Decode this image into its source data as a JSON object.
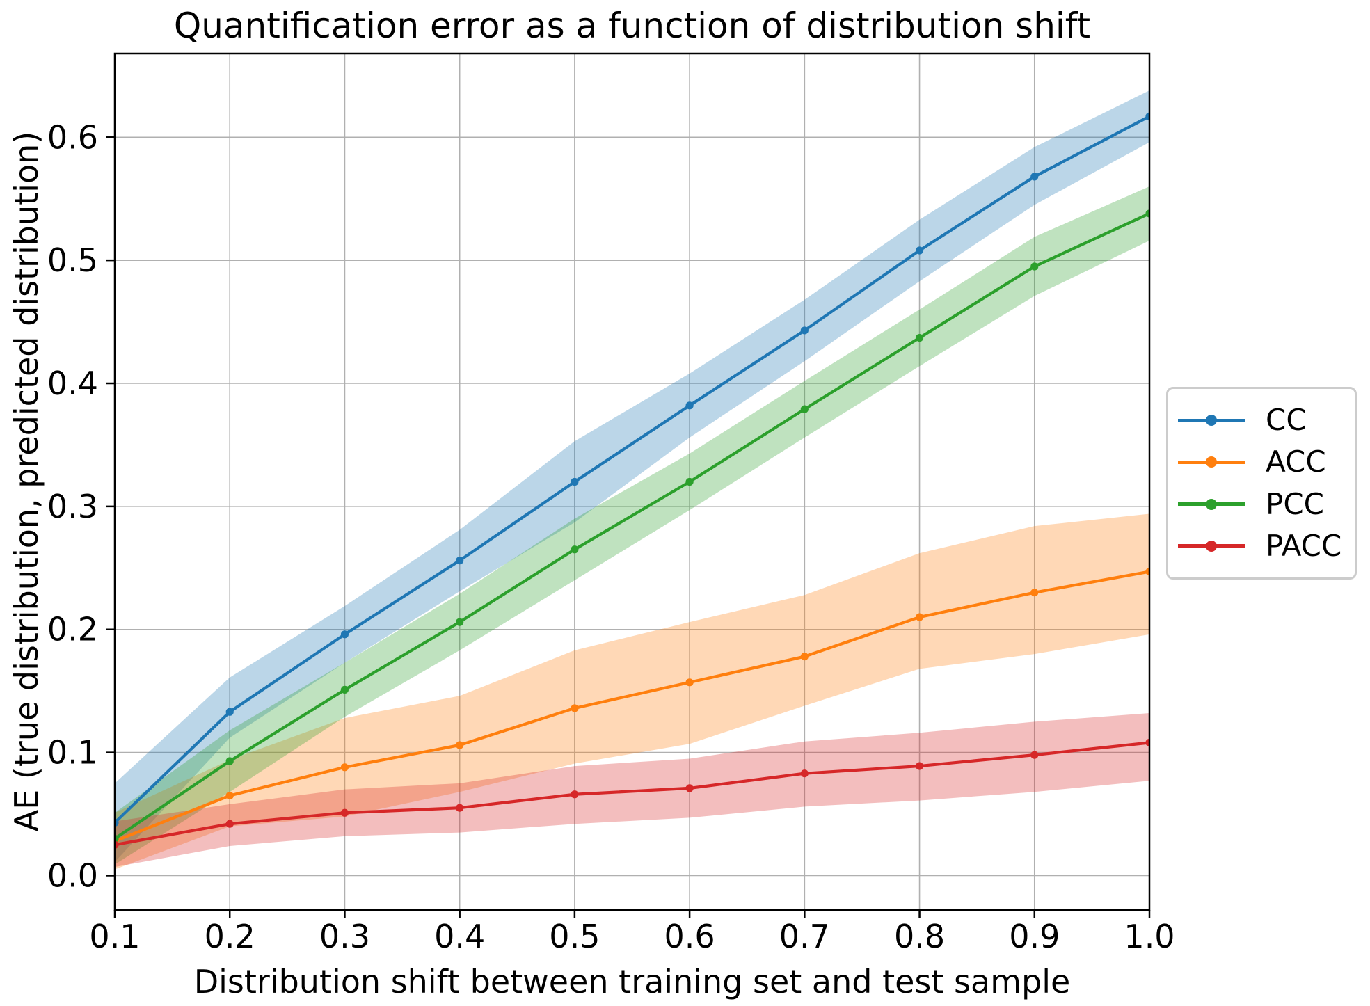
{
  "chart_data": {
    "type": "line",
    "title": "Quantification error as a function of distribution shift",
    "xlabel": "Distribution shift between training set and test sample",
    "ylabel": "AE (true distribution, predicted distribution)",
    "x": [
      0.1,
      0.2,
      0.3,
      0.4,
      0.5,
      0.6,
      0.7,
      0.8,
      0.9,
      1.0
    ],
    "xticks": [
      0.1,
      0.2,
      0.3,
      0.4,
      0.5,
      0.6,
      0.7,
      0.8,
      0.9,
      1.0
    ],
    "yticks": [
      0.0,
      0.1,
      0.2,
      0.3,
      0.4,
      0.5,
      0.6
    ],
    "xlim": [
      0.1,
      1.0
    ],
    "ylim": [
      -0.028,
      0.668
    ],
    "grid": true,
    "legend_position": "center-right-outside",
    "band_alpha": 0.3,
    "series": [
      {
        "name": "CC",
        "color": "#1f77b4",
        "values": [
          0.043,
          0.133,
          0.196,
          0.256,
          0.32,
          0.382,
          0.443,
          0.508,
          0.568,
          0.617
        ],
        "band_lower": [
          0.011,
          0.112,
          0.173,
          0.231,
          0.287,
          0.356,
          0.418,
          0.483,
          0.545,
          0.596
        ],
        "band_upper": [
          0.075,
          0.161,
          0.219,
          0.281,
          0.353,
          0.408,
          0.468,
          0.533,
          0.592,
          0.638
        ]
      },
      {
        "name": "ACC",
        "color": "#ff7f0e",
        "values": [
          0.028,
          0.065,
          0.088,
          0.106,
          0.136,
          0.157,
          0.178,
          0.21,
          0.23,
          0.247
        ],
        "band_lower": [
          0.005,
          0.04,
          0.048,
          0.068,
          0.091,
          0.107,
          0.138,
          0.168,
          0.18,
          0.196
        ],
        "band_upper": [
          0.051,
          0.094,
          0.128,
          0.146,
          0.183,
          0.206,
          0.228,
          0.262,
          0.284,
          0.294
        ]
      },
      {
        "name": "PCC",
        "color": "#2ca02c",
        "values": [
          0.03,
          0.093,
          0.151,
          0.206,
          0.265,
          0.32,
          0.379,
          0.437,
          0.495,
          0.538
        ],
        "band_lower": [
          0.009,
          0.068,
          0.129,
          0.183,
          0.24,
          0.297,
          0.356,
          0.414,
          0.471,
          0.516
        ],
        "band_upper": [
          0.051,
          0.118,
          0.173,
          0.229,
          0.29,
          0.343,
          0.402,
          0.46,
          0.519,
          0.56
        ]
      },
      {
        "name": "PACC",
        "color": "#d62728",
        "values": [
          0.025,
          0.042,
          0.051,
          0.055,
          0.066,
          0.071,
          0.083,
          0.089,
          0.098,
          0.108
        ],
        "band_lower": [
          0.007,
          0.024,
          0.032,
          0.035,
          0.042,
          0.047,
          0.056,
          0.061,
          0.068,
          0.077
        ],
        "band_upper": [
          0.044,
          0.058,
          0.07,
          0.075,
          0.089,
          0.095,
          0.109,
          0.116,
          0.125,
          0.132
        ]
      }
    ]
  },
  "style_colors": {
    "grid": "#b0b0b0",
    "spine": "#000000",
    "tick": "#000000",
    "legend_border": "#cccccc",
    "background": "#ffffff"
  }
}
